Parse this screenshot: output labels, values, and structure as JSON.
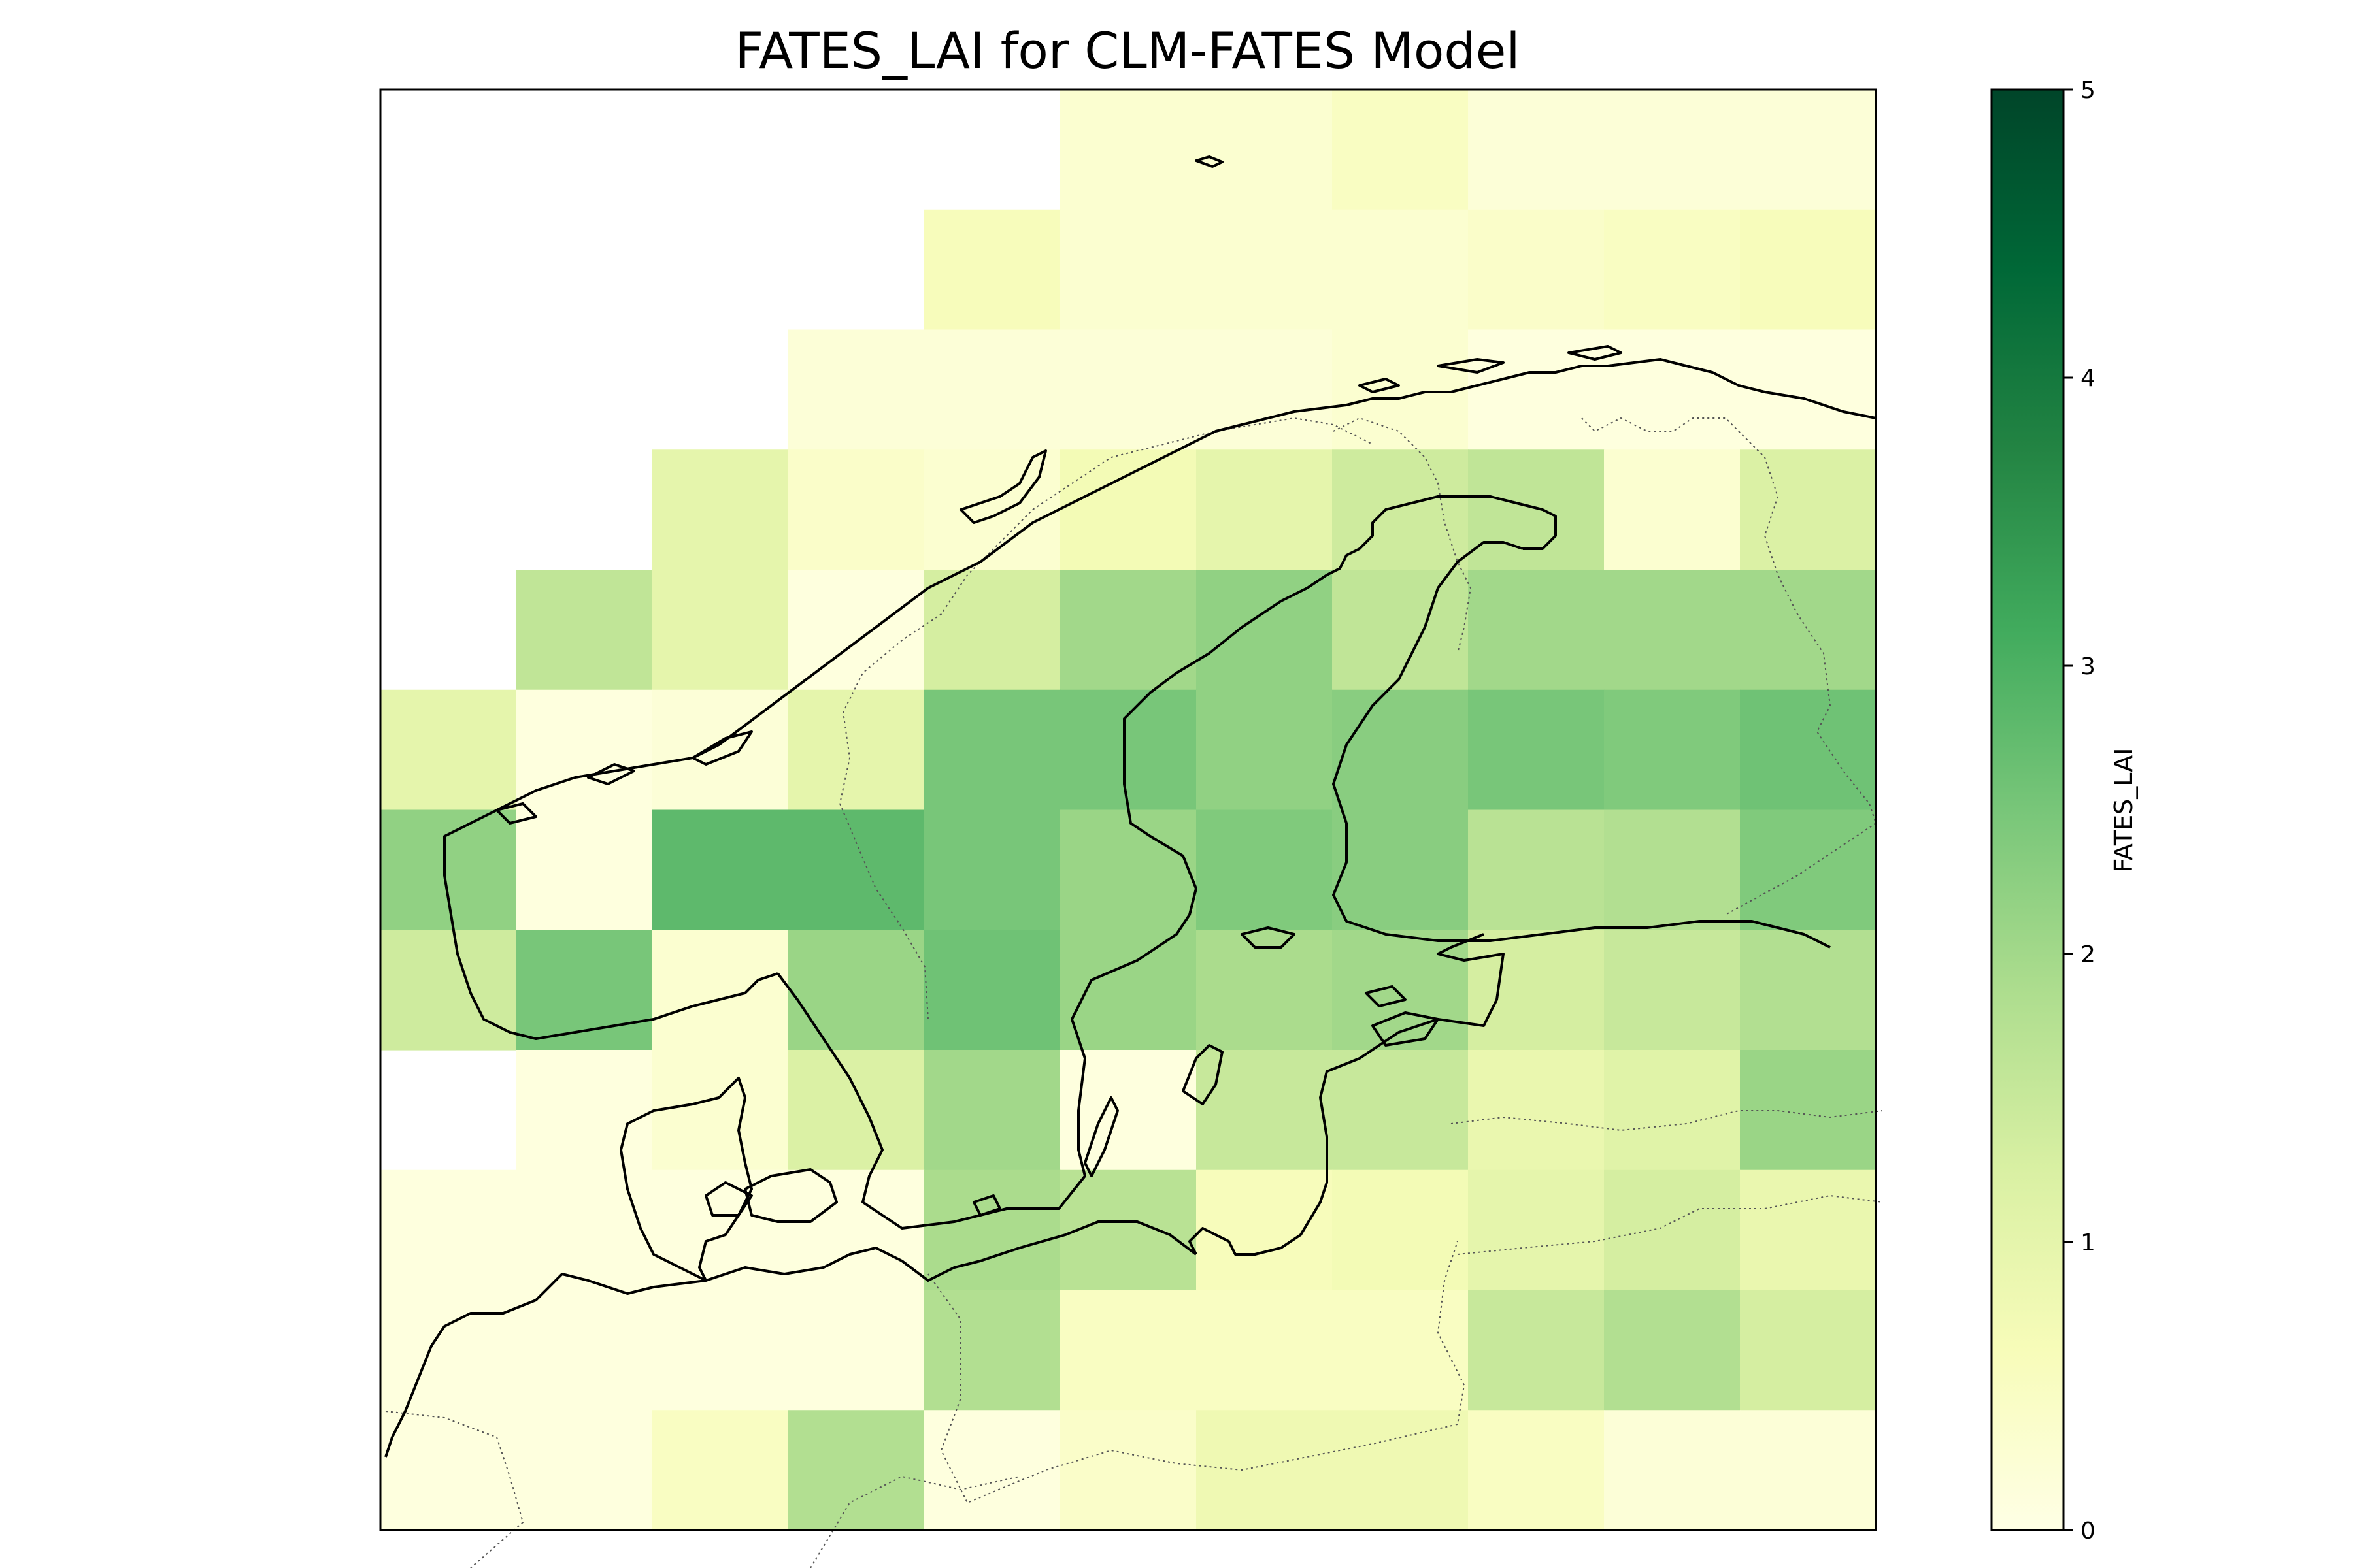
{
  "chart_data": {
    "type": "heatmap",
    "title": "FATES_LAI for CLM-FATES Model",
    "colorbar": {
      "label": "FATES_LAI",
      "range": [
        0,
        5
      ],
      "ticks": [
        "0",
        "1",
        "2",
        "3",
        "4",
        "5"
      ],
      "colormap": "YlGn",
      "stops": [
        "#ffffe5",
        "#f7fcb9",
        "#d9f0a3",
        "#addd8e",
        "#78c679",
        "#41ab5d",
        "#238443",
        "#006837",
        "#004529"
      ]
    },
    "grid": {
      "rows": 12,
      "cols": 11,
      "values": [
        [
          null,
          null,
          null,
          null,
          null,
          0.3,
          0.3,
          0.5,
          0.2,
          0.2,
          0.2
        ],
        [
          null,
          null,
          null,
          null,
          0.6,
          0.3,
          0.3,
          0.3,
          0.4,
          0.5,
          0.6
        ],
        [
          null,
          null,
          null,
          0.2,
          0.2,
          0.2,
          0.2,
          0.3,
          0.1,
          0.1,
          0.1
        ],
        [
          null,
          null,
          1.0,
          0.4,
          0.3,
          0.7,
          1.0,
          1.4,
          1.6,
          0.3,
          1.2
        ],
        [
          null,
          1.6,
          1.0,
          0.1,
          1.3,
          2.0,
          2.2,
          1.6,
          2.0,
          2.0,
          2.0
        ],
        [
          1.0,
          0.1,
          0.2,
          1.0,
          2.5,
          2.5,
          2.2,
          2.3,
          2.5,
          2.4,
          2.6
        ],
        [
          2.2,
          0.1,
          2.8,
          2.8,
          2.5,
          2.1,
          2.4,
          2.3,
          1.7,
          1.8,
          2.4
        ],
        [
          1.4,
          2.5,
          0.3,
          2.1,
          2.6,
          2.1,
          1.9,
          2.0,
          1.3,
          1.5,
          1.8
        ],
        [
          null,
          0.1,
          0.3,
          1.2,
          2.0,
          0.1,
          1.5,
          1.5,
          0.9,
          1.1,
          2.1
        ],
        [
          0.1,
          0.1,
          0.1,
          0.1,
          1.9,
          1.7,
          0.6,
          0.7,
          1.0,
          1.3,
          0.9
        ],
        [
          0.1,
          0.1,
          0.1,
          0.1,
          1.8,
          0.5,
          0.5,
          0.5,
          1.5,
          1.8,
          1.3
        ],
        [
          0.1,
          0.1,
          0.5,
          1.8,
          0.1,
          0.4,
          0.8,
          0.8,
          0.5,
          0.2,
          0.2
        ]
      ]
    }
  }
}
